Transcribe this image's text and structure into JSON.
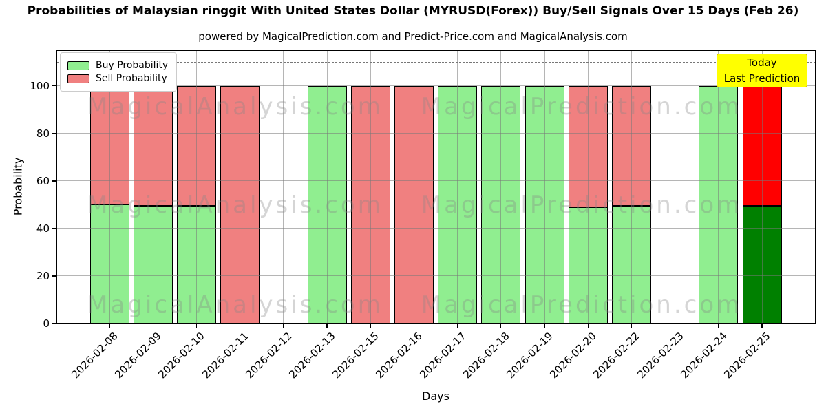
{
  "page": {
    "title": "Probabilities of Malaysian ringgit With United States Dollar (MYRUSD(Forex)) Buy/Sell Signals Over 15 Days (Feb 26)",
    "subtitle": "powered by MagicalPrediction.com and Predict-Price.com and MagicalAnalysis.com"
  },
  "chart_data": {
    "type": "bar",
    "stacked": true,
    "title": "Probabilities of Malaysian ringgit With United States Dollar (MYRUSD(Forex)) Buy/Sell Signals Over 15 Days (Feb 26)",
    "xlabel": "Days",
    "ylabel": "Probability",
    "categories": [
      "2026-02-08",
      "2026-02-09",
      "2026-02-10",
      "2026-02-11",
      "2026-02-12",
      "2026-02-13",
      "2026-02-15",
      "2026-02-16",
      "2026-02-17",
      "2026-02-18",
      "2026-02-19",
      "2026-02-20",
      "2026-02-22",
      "2026-02-23",
      "2026-02-24",
      "2026-02-25"
    ],
    "series": [
      {
        "name": "Buy Probability",
        "color": "#90ee90",
        "values": [
          50,
          49.5,
          49.5,
          0,
          0,
          100,
          0,
          0,
          100,
          100,
          100,
          49,
          49.5,
          0,
          100,
          49.5
        ]
      },
      {
        "name": "Sell Probability",
        "color": "#f08080",
        "values": [
          50,
          50.5,
          50.5,
          100,
          0,
          0,
          100,
          100,
          0,
          0,
          0,
          51,
          50.5,
          0,
          0,
          50.5
        ]
      }
    ],
    "today_bar": {
      "index": 15,
      "buy_color": "#008000",
      "sell_color": "#ff0000"
    },
    "yticks": [
      0,
      20,
      40,
      60,
      80,
      100
    ],
    "ylim": [
      0,
      115
    ],
    "reference_line_y": 110,
    "grid": true,
    "legend_position": "upper-left",
    "bar_edge_color": "#000000"
  },
  "annotation_box": {
    "line1": "Today",
    "line2": "Last Prediction",
    "bg_color": "#ffff00"
  },
  "watermarks": {
    "left_text": "MagicalAnalysis.com",
    "right_text": "MagicalPrediction.com"
  }
}
